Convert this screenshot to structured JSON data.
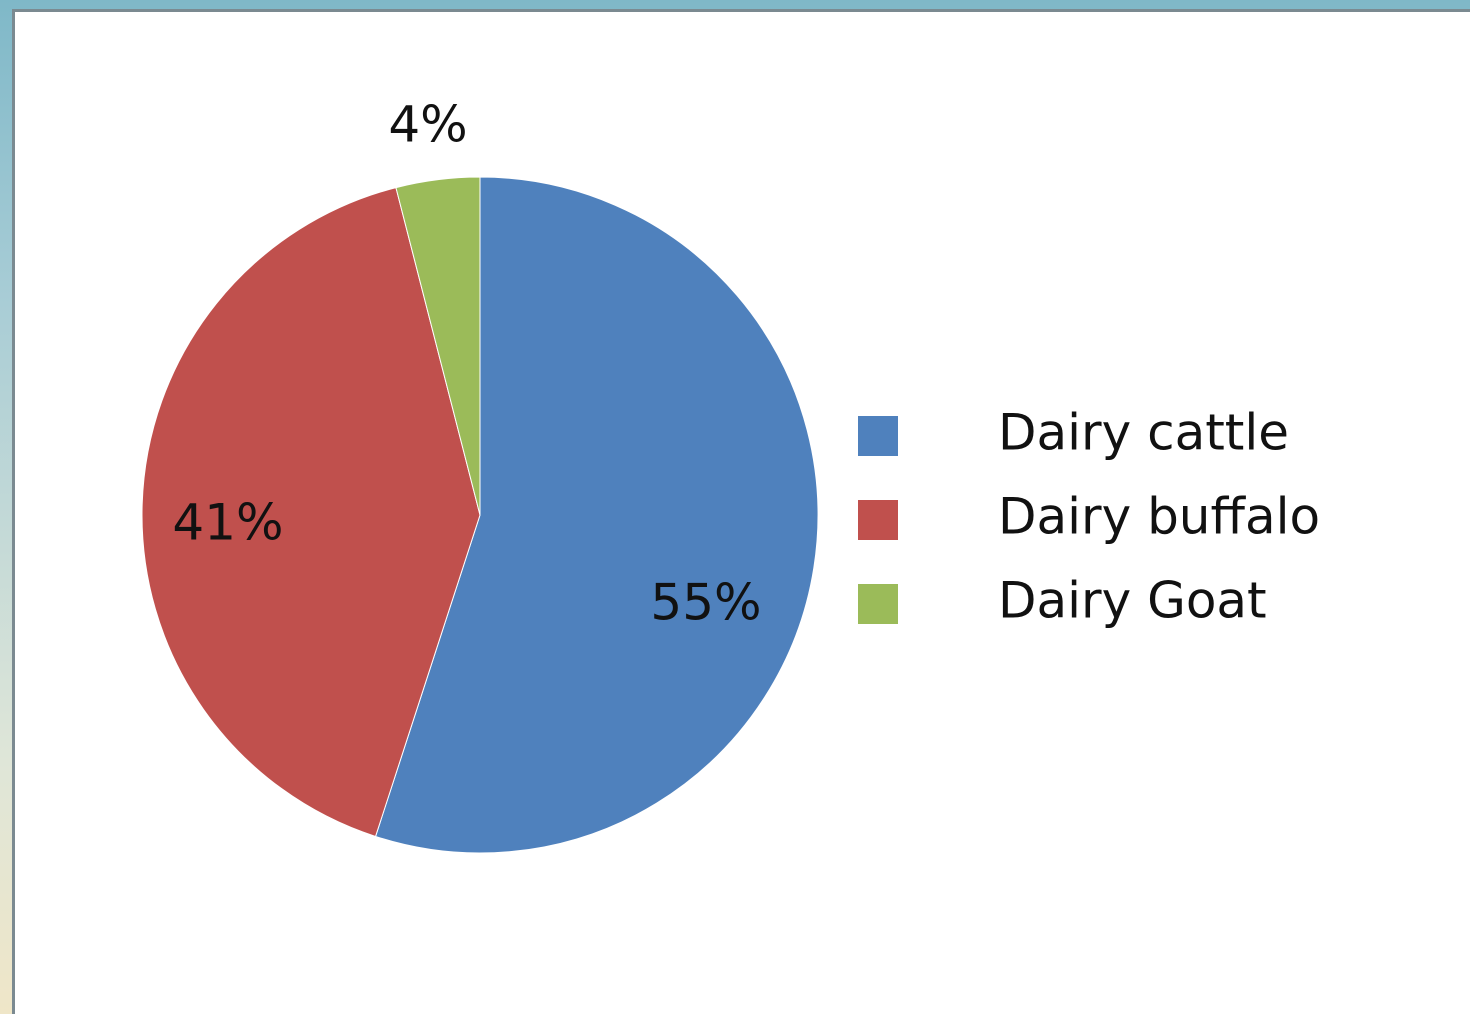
{
  "chart_data": {
    "type": "pie",
    "categories": [
      "Dairy cattle",
      "Dairy buffalo",
      "Dairy Goat"
    ],
    "values": [
      55,
      41,
      4
    ],
    "value_labels": [
      "55%",
      "41%",
      "4%"
    ],
    "colors": [
      "#4f81bd",
      "#c0504d",
      "#9bbb59"
    ],
    "start_angle_deg": 0,
    "direction": "clockwise",
    "legend_position": "right",
    "title": ""
  }
}
